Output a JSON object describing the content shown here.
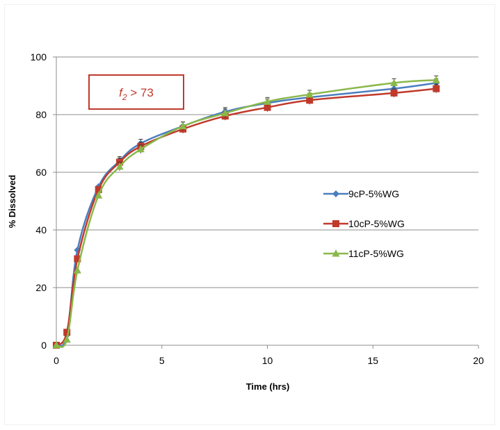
{
  "chart_data": {
    "type": "line",
    "title": "",
    "xlabel": "Time (hrs)",
    "ylabel": "% Dissolved",
    "xlim": [
      0,
      20
    ],
    "ylim": [
      0,
      100
    ],
    "x_ticks": [
      "0",
      "5",
      "10",
      "15",
      "20"
    ],
    "y_ticks": [
      "0",
      "20",
      "40",
      "60",
      "80",
      "100"
    ],
    "grid": "horizontal",
    "legend_position": "right",
    "annotation": {
      "symbol": "f",
      "subscript": "2",
      "rest": " > 73",
      "color": "#c0392b"
    },
    "series": [
      {
        "name": "9cP-5%WG",
        "color": "#4a7ebf",
        "marker": "diamond",
        "x": [
          0,
          0.5,
          1,
          2,
          3,
          4,
          6,
          8,
          10,
          12,
          16,
          18
        ],
        "y": [
          0,
          3.5,
          33,
          55,
          64,
          70,
          76,
          81,
          84,
          86,
          89,
          91
        ]
      },
      {
        "name": "10cP-5%WG",
        "color": "#c0392b",
        "marker": "square",
        "x": [
          0,
          0.5,
          1,
          2,
          3,
          4,
          6,
          8,
          10,
          12,
          16,
          18
        ],
        "y": [
          0,
          4.5,
          30,
          54,
          63.5,
          69,
          75,
          79.5,
          82.5,
          85,
          87.5,
          89
        ]
      },
      {
        "name": "11cP-5%WG",
        "color": "#8ab84a",
        "marker": "triangle",
        "x": [
          0,
          0.5,
          1,
          2,
          3,
          4,
          6,
          8,
          10,
          12,
          16,
          18
        ],
        "y": [
          0,
          2,
          26,
          52,
          62,
          68,
          76,
          80.5,
          84.5,
          87,
          91,
          92
        ]
      }
    ]
  }
}
